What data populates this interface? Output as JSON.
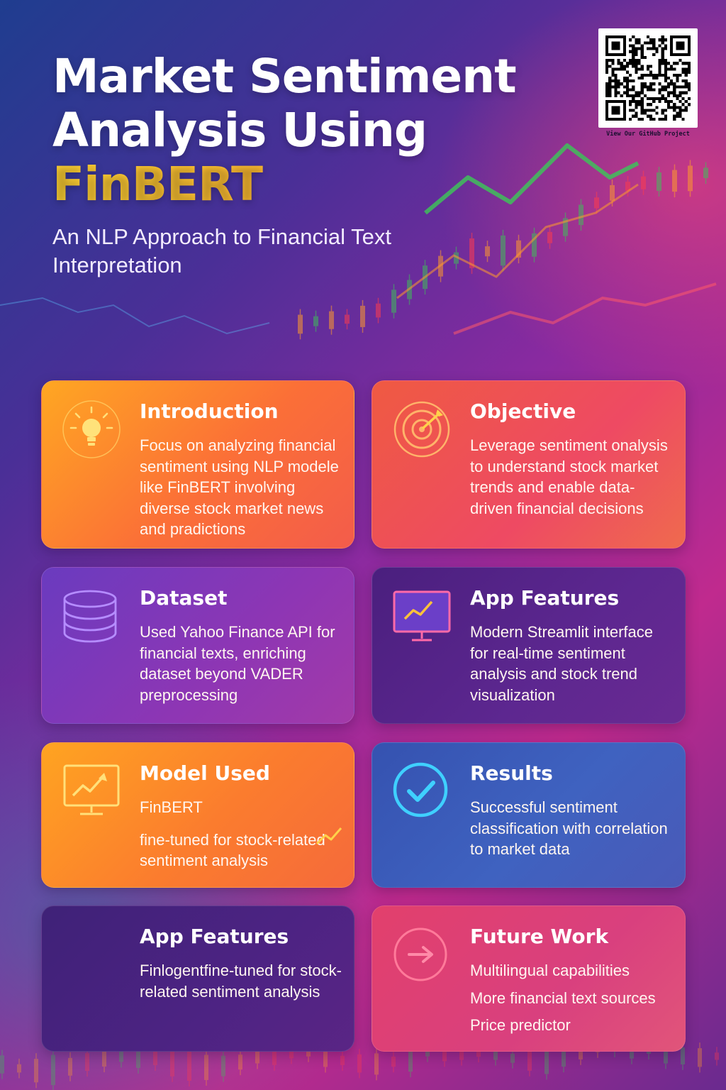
{
  "header": {
    "title_line1": "Market Sentiment",
    "title_line2": "Analysis Using",
    "title_accent": "FinBERT",
    "subtitle": "An NLP Approach to Financial Text Interpretation"
  },
  "qr": {
    "caption": "View Our GitHub Project"
  },
  "colors": {
    "accent_gold": "#ffd234",
    "accent_orange": "#ff9a2e",
    "chart_green": "#3fbf5a",
    "chart_orange": "#ff9a2e",
    "chart_red": "#ff3b4e"
  },
  "cards": [
    {
      "title": "Introduction",
      "icon": "lightbulb-icon",
      "lines": [
        "Focus on analyzing financial sentiment using NLP modele like FinBERT involving diverse stock market news and pradictions"
      ]
    },
    {
      "title": "Objective",
      "icon": "target-icon",
      "lines": [
        "Leverage sentiment onalysis to understand stock market trends and enable data-driven financial decisions"
      ]
    },
    {
      "title": "Dataset",
      "icon": "database-icon",
      "lines": [
        "Used Yahoo Finance API for financial texts, enriching dataset beyond VADER preprocessing"
      ]
    },
    {
      "title": "App Features",
      "icon": "monitor-chart-icon",
      "lines": [
        "Modern Streamlit interface for real-time sentiment analysis and stock trend visualization"
      ]
    },
    {
      "title": "Model Used",
      "icon": "trend-chart-icon",
      "lines": [
        "FinBERT",
        "fine-tuned for stock-related sentiment analysis"
      ]
    },
    {
      "title": "Results",
      "icon": "check-circle-icon",
      "lines": [
        "Successful sentiment classification with correlation to market data"
      ]
    },
    {
      "title": "App Features",
      "icon": "",
      "lines": [
        "Finlogentfine-tuned for stock-related sentiment analysis"
      ]
    },
    {
      "title": "Future Work",
      "icon": "arrow-circle-icon",
      "lines": [
        "Multilingual capabilities",
        "More financial text sources",
        "Price predictor"
      ]
    }
  ]
}
